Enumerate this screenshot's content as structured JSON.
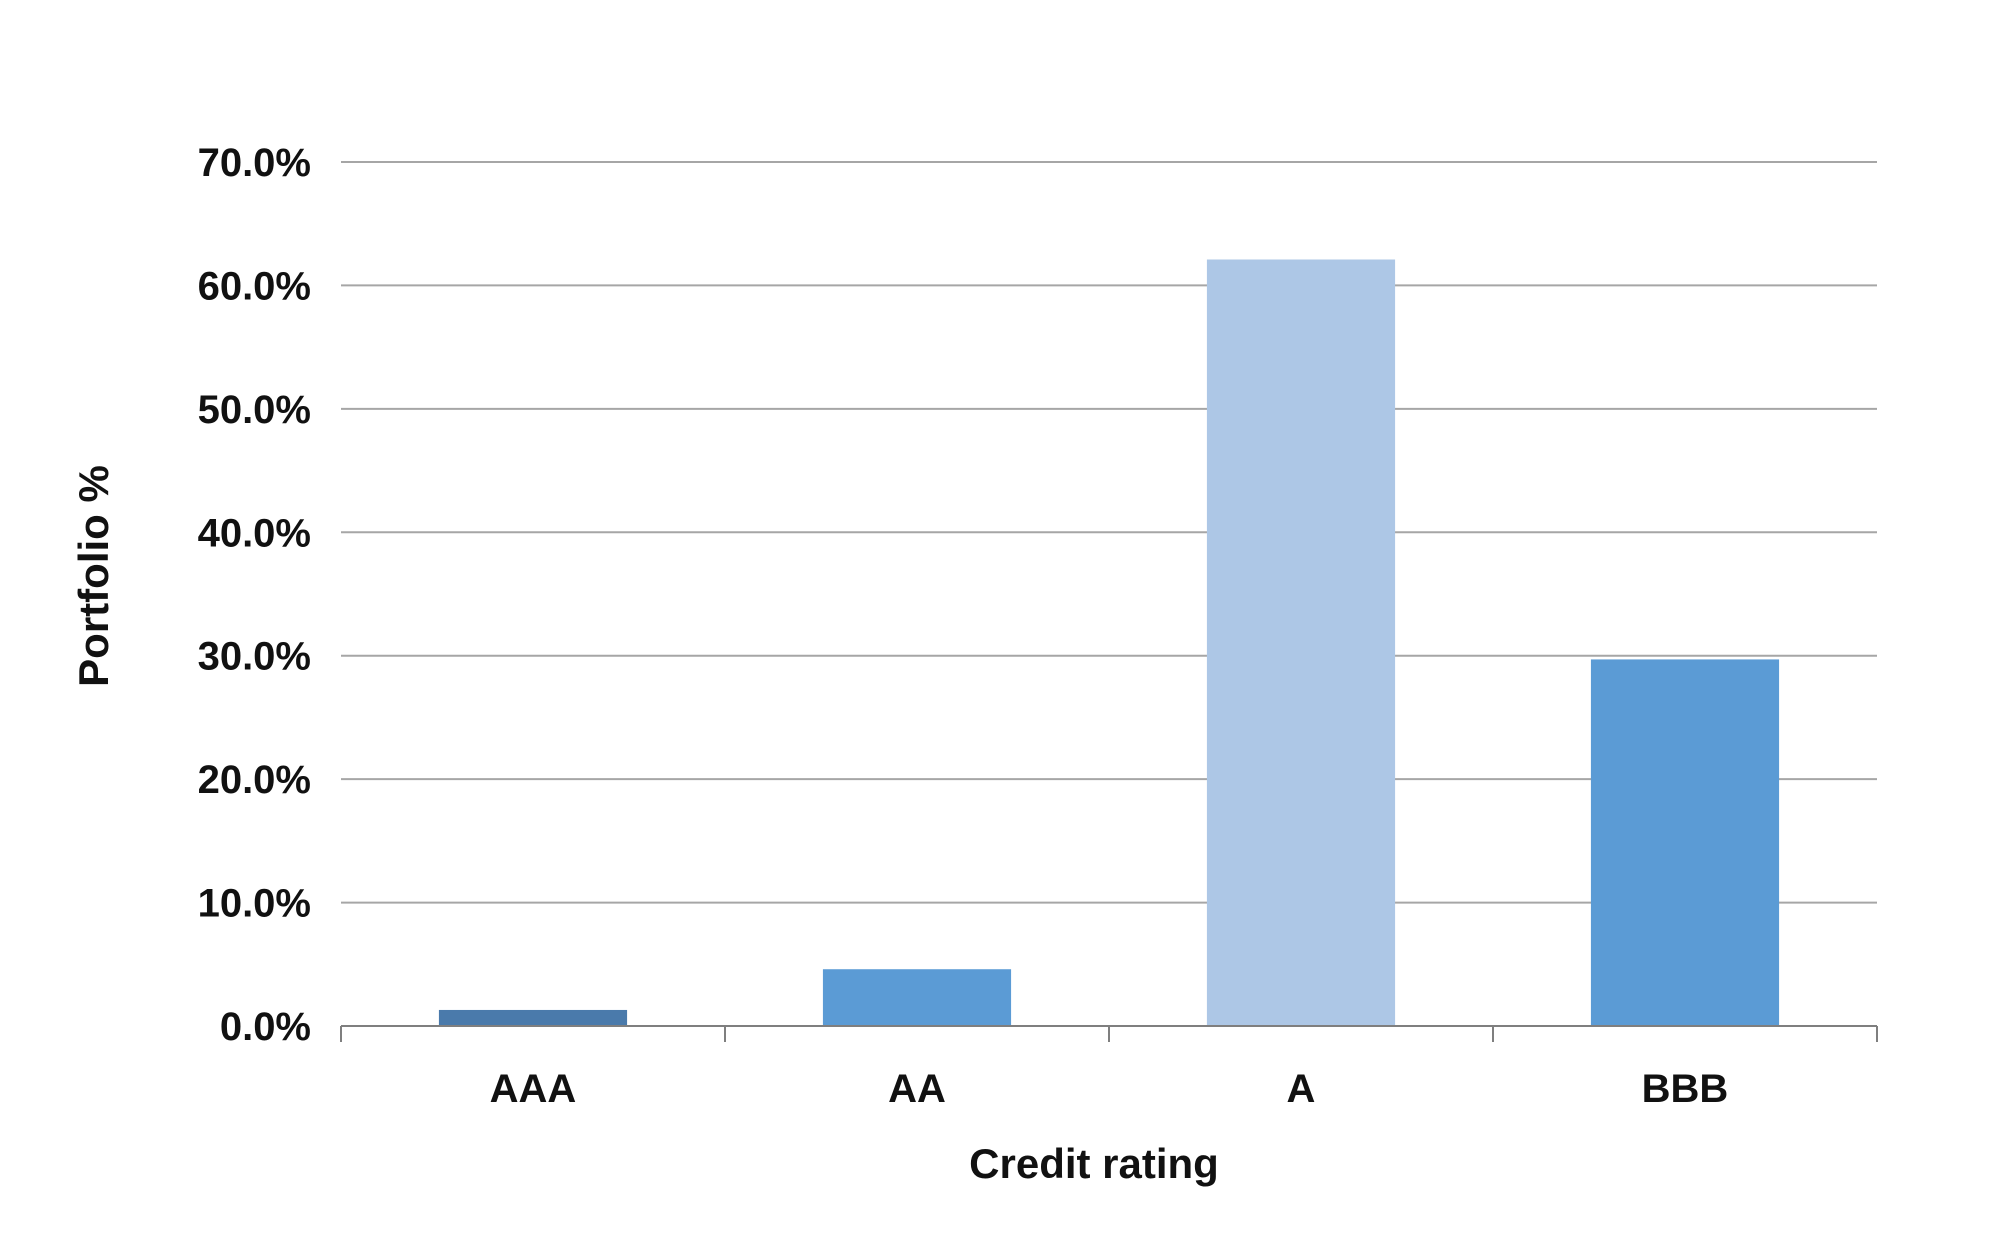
{
  "chart_data": {
    "type": "bar",
    "title": "",
    "xlabel": "Credit rating",
    "ylabel": "Portfolio %",
    "categories": [
      "AAA",
      "AA",
      "A",
      "BBB"
    ],
    "values": [
      1.3,
      4.6,
      62.1,
      29.7
    ],
    "bar_colors": [
      "#4a7aab",
      "#5b9bd5",
      "#adc7e6",
      "#5b9bd5"
    ],
    "ylim": [
      0,
      70
    ],
    "yticks": [
      0,
      10,
      20,
      30,
      40,
      50,
      60,
      70
    ],
    "ytick_labels": [
      "0.0%",
      "10.0%",
      "20.0%",
      "30.0%",
      "40.0%",
      "50.0%",
      "60.0%",
      "70.0%"
    ],
    "grid": true,
    "gridline_color": "#a6a6a6",
    "legend": "none"
  }
}
